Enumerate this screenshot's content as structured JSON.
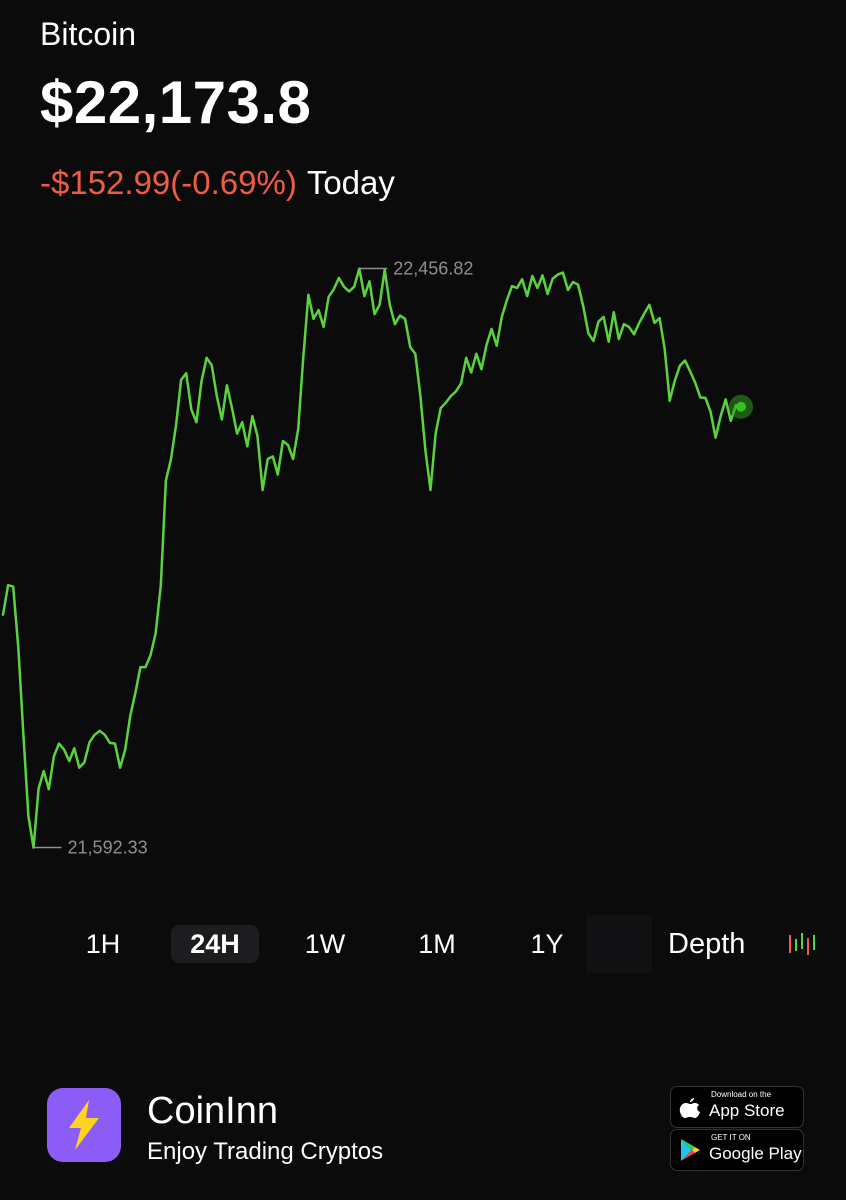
{
  "asset": {
    "name": "Bitcoin",
    "price": "$22,173.8",
    "change_amount": "-$152.99",
    "change_percent": "(-0.69%)",
    "period": "Today"
  },
  "colors": {
    "line": "#5bd33d",
    "negative": "#ef5b43",
    "background": "#0b0b0c",
    "brand_logo": "#8b5cf6",
    "logo_bolt": "#ffd21f"
  },
  "chart_data": {
    "type": "line",
    "high_label": "22,456.82",
    "low_label": "21,592.33",
    "y_range": [
      21592.33,
      22456.82
    ],
    "values": [
      21940,
      21984,
      21982,
      21891,
      21761,
      21640,
      21593,
      21681,
      21707,
      21680,
      21729,
      21748,
      21739,
      21722,
      21741,
      21712,
      21720,
      21750,
      21761,
      21767,
      21761,
      21749,
      21748,
      21712,
      21739,
      21789,
      21823,
      21862,
      21862,
      21880,
      21913,
      21984,
      22140,
      22172,
      22222,
      22290,
      22300,
      22246,
      22227,
      22288,
      22323,
      22312,
      22266,
      22231,
      22282,
      22248,
      22210,
      22227,
      22191,
      22236,
      22206,
      22126,
      22172,
      22176,
      22149,
      22199,
      22193,
      22172,
      22217,
      22324,
      22417,
      22381,
      22394,
      22369,
      22414,
      22425,
      22442,
      22429,
      22422,
      22429,
      22456,
      22415,
      22437,
      22388,
      22402,
      22454,
      22402,
      22373,
      22386,
      22381,
      22339,
      22329,
      22266,
      22185,
      22126,
      22210,
      22248,
      22256,
      22266,
      22273,
      22285,
      22323,
      22301,
      22329,
      22306,
      22342,
      22366,
      22341,
      22384,
      22409,
      22430,
      22427,
      22440,
      22415,
      22445,
      22427,
      22446,
      22418,
      22441,
      22447,
      22450,
      22424,
      22436,
      22432,
      22400,
      22360,
      22348,
      22377,
      22384,
      22347,
      22391,
      22351,
      22373,
      22369,
      22358,
      22375,
      22389,
      22402,
      22375,
      22382,
      22336,
      22259,
      22289,
      22311,
      22319,
      22303,
      22286,
      22264,
      22263,
      22243,
      22204,
      22236,
      22261,
      22229,
      22252,
      22250
    ]
  },
  "timeframes": {
    "items": [
      {
        "label": "1H",
        "active": false
      },
      {
        "label": "24H",
        "active": true
      },
      {
        "label": "1W",
        "active": false
      },
      {
        "label": "1M",
        "active": false
      },
      {
        "label": "1Y",
        "active": false
      }
    ],
    "depth_label": "Depth"
  },
  "footer": {
    "brand": "CoinInn",
    "tagline": "Enjoy Trading Cryptos",
    "app_store": {
      "small": "Download on the",
      "big": "App Store"
    },
    "google_play": {
      "small": "GET IT ON",
      "big": "Google Play"
    }
  }
}
